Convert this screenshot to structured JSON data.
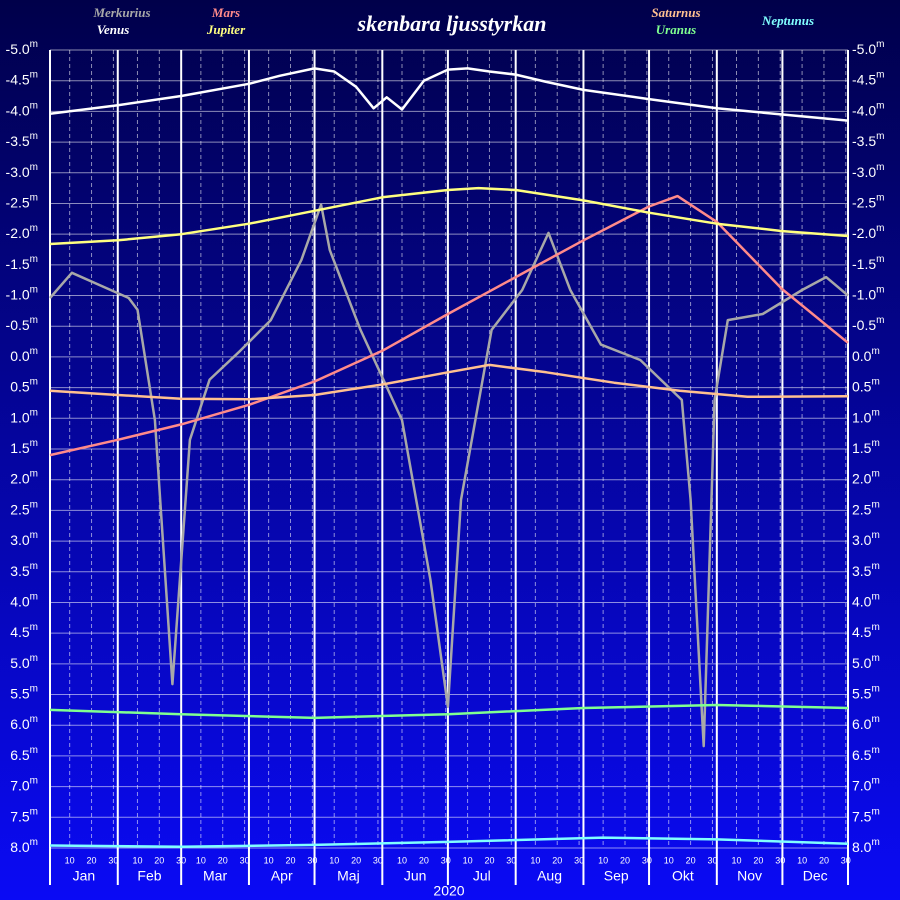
{
  "chart_data": {
    "type": "line",
    "title": "skenbara ljusstyrkan",
    "x_label": "2020",
    "xlim": [
      "2020-01-01",
      "2020-12-31"
    ],
    "categories": [
      "Jan",
      "Feb",
      "Mar",
      "Apr",
      "Maj",
      "Jun",
      "Jul",
      "Aug",
      "Sep",
      "Okt",
      "Nov",
      "Dec"
    ],
    "day_ticks": [
      10,
      20,
      30
    ],
    "ylim": [
      -5,
      8
    ],
    "y_inverted": true,
    "y_unit": "m",
    "yticks": [
      {
        "value": -5,
        "label": "-5.0"
      },
      -4.5,
      {
        "value": -4,
        "label": "-4.0"
      },
      -3.5,
      {
        "value": -3,
        "label": "-3.0"
      },
      -2.5,
      {
        "value": -2,
        "label": "-2.0"
      },
      -1.5,
      {
        "value": -1,
        "label": "-1.0"
      },
      -0.5,
      {
        "value": 0,
        "label": "0.0"
      },
      0.5,
      {
        "value": 1,
        "label": "1.0"
      },
      1.5,
      {
        "value": 2,
        "label": "2.0"
      },
      2.5,
      {
        "value": 3,
        "label": "3.0"
      },
      3.5,
      {
        "value": 4,
        "label": "4.0"
      },
      4.5,
      {
        "value": 5,
        "label": "5.0"
      },
      5.5,
      {
        "value": 6,
        "label": "6.0"
      },
      6.5,
      {
        "value": 7,
        "label": "7.0"
      },
      7.5,
      {
        "value": 8,
        "label": "8.0"
      }
    ],
    "grid": true,
    "series": [
      {
        "name": "Merkurius",
        "color": "#a8a8a8",
        "x": [
          "2020-01-01",
          "2020-01-11",
          "2020-02-06",
          "2020-02-10",
          "2020-02-18",
          "2020-02-26",
          "2020-03-05",
          "2020-03-14",
          "2020-03-28",
          "2020-04-11",
          "2020-04-25",
          "2020-05-04",
          "2020-05-08",
          "2020-05-22",
          "2020-06-10",
          "2020-06-23",
          "2020-07-01",
          "2020-07-07",
          "2020-07-21",
          "2020-08-04",
          "2020-08-16",
          "2020-08-26",
          "2020-09-09",
          "2020-09-27",
          "2020-10-16",
          "2020-10-20",
          "2020-10-26",
          "2020-10-31",
          "2020-11-06",
          "2020-11-22",
          "2020-12-10",
          "2020-12-21",
          "2020-12-31"
        ],
        "values": [
          -0.96,
          -1.37,
          -0.96,
          -0.77,
          1.03,
          5.33,
          1.35,
          0.37,
          -0.1,
          -0.6,
          -1.58,
          -2.48,
          -1.74,
          -0.44,
          1.03,
          3.63,
          5.7,
          2.33,
          -0.44,
          -1.09,
          -2.02,
          -1.09,
          -0.2,
          0.05,
          0.7,
          2.33,
          6.34,
          0.7,
          -0.6,
          -0.7,
          -1.09,
          -1.3,
          -1.0
        ]
      },
      {
        "name": "Venus",
        "color": "#ffffff",
        "x": [
          "2020-01-01",
          "2020-02-01",
          "2020-03-01",
          "2020-04-01",
          "2020-04-15",
          "2020-05-01",
          "2020-05-10",
          "2020-05-20",
          "2020-05-28",
          "2020-06-03",
          "2020-06-10",
          "2020-06-20",
          "2020-07-01",
          "2020-07-10",
          "2020-07-20",
          "2020-08-01",
          "2020-08-15",
          "2020-09-01",
          "2020-10-01",
          "2020-11-01",
          "2020-12-01",
          "2020-12-31"
        ],
        "values": [
          -3.96,
          -4.1,
          -4.25,
          -4.45,
          -4.58,
          -4.7,
          -4.65,
          -4.4,
          -4.05,
          -4.23,
          -4.03,
          -4.5,
          -4.68,
          -4.7,
          -4.65,
          -4.6,
          -4.48,
          -4.35,
          -4.2,
          -4.05,
          -3.95,
          -3.85
        ]
      },
      {
        "name": "Mars",
        "color": "#ff8a8a",
        "x": [
          "2020-01-01",
          "2020-02-01",
          "2020-03-01",
          "2020-04-01",
          "2020-05-01",
          "2020-06-01",
          "2020-07-01",
          "2020-08-01",
          "2020-09-01",
          "2020-10-01",
          "2020-10-14",
          "2020-11-01",
          "2020-12-01",
          "2020-12-31"
        ],
        "values": [
          1.6,
          1.35,
          1.1,
          0.78,
          0.4,
          -0.1,
          -0.7,
          -1.3,
          -1.9,
          -2.45,
          -2.62,
          -2.2,
          -1.1,
          -0.23
        ]
      },
      {
        "name": "Jupiter",
        "color": "#ffff80",
        "x": [
          "2020-01-01",
          "2020-02-01",
          "2020-03-01",
          "2020-04-01",
          "2020-05-01",
          "2020-06-01",
          "2020-07-01",
          "2020-07-15",
          "2020-08-01",
          "2020-09-01",
          "2020-10-01",
          "2020-11-01",
          "2020-12-01",
          "2020-12-31"
        ],
        "values": [
          -1.84,
          -1.9,
          -2.0,
          -2.17,
          -2.38,
          -2.6,
          -2.72,
          -2.75,
          -2.72,
          -2.55,
          -2.35,
          -2.17,
          -2.05,
          -1.97
        ]
      },
      {
        "name": "Saturnus",
        "color": "#ffc090",
        "x": [
          "2020-01-01",
          "2020-02-01",
          "2020-03-01",
          "2020-04-01",
          "2020-05-01",
          "2020-06-01",
          "2020-07-01",
          "2020-07-20",
          "2020-08-15",
          "2020-09-15",
          "2020-10-15",
          "2020-11-15",
          "2020-12-31"
        ],
        "values": [
          0.55,
          0.62,
          0.68,
          0.69,
          0.62,
          0.45,
          0.25,
          0.13,
          0.25,
          0.42,
          0.55,
          0.65,
          0.64
        ]
      },
      {
        "name": "Uranus",
        "color": "#80ff90",
        "x": [
          "2020-01-01",
          "2020-03-01",
          "2020-05-01",
          "2020-07-01",
          "2020-09-01",
          "2020-11-01",
          "2020-12-31"
        ],
        "values": [
          5.75,
          5.82,
          5.88,
          5.82,
          5.72,
          5.67,
          5.72
        ]
      },
      {
        "name": "Neptunus",
        "color": "#80ffff",
        "x": [
          "2020-01-01",
          "2020-03-01",
          "2020-05-01",
          "2020-07-01",
          "2020-09-10",
          "2020-11-01",
          "2020-12-31"
        ],
        "values": [
          7.96,
          7.98,
          7.95,
          7.9,
          7.83,
          7.86,
          7.93
        ]
      }
    ]
  }
}
